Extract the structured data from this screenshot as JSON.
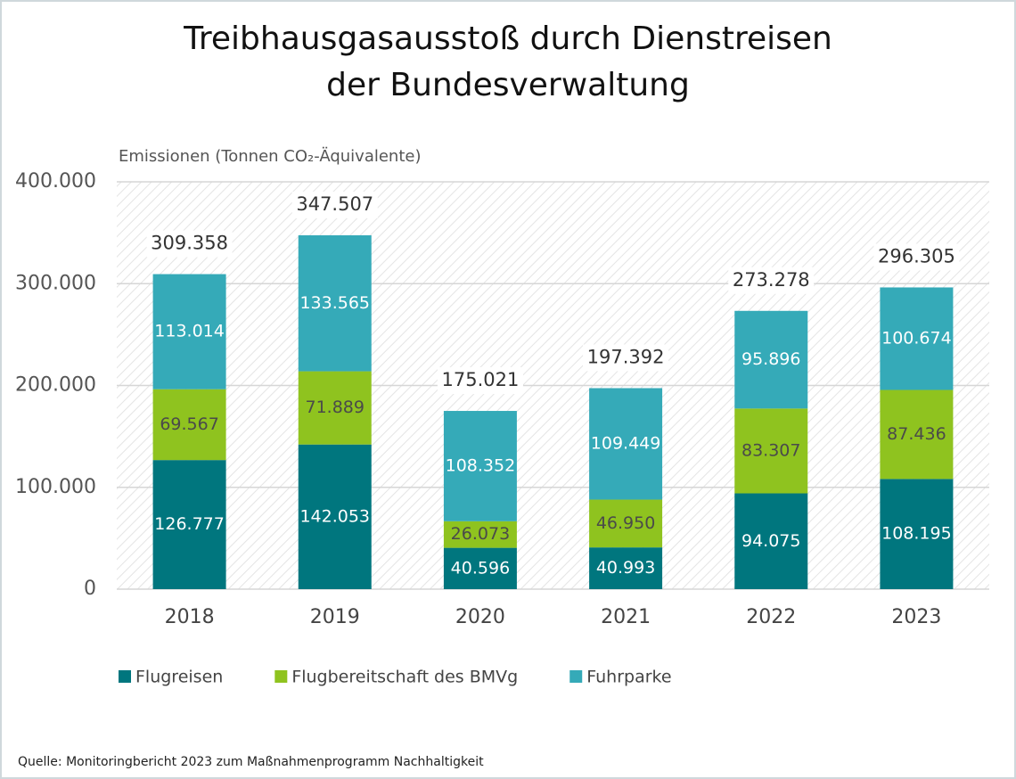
{
  "chart_data": {
    "type": "stacked_bar",
    "title": [
      "Treibhausgasausstoß durch Dienstreisen",
      "der Bundesverwaltung"
    ],
    "y_label": "Emissionen (Tonnen CO₂-Äquivalente)",
    "source": "Quelle: Monitoringbericht 2023 zum Maßnahmenprogramm Nachhaltigkeit",
    "categories": [
      "2018",
      "2019",
      "2020",
      "2021",
      "2022",
      "2023"
    ],
    "series": [
      {
        "name": "Flugreisen",
        "color": "#00767e",
        "label_color": "#ffffff",
        "values": [
          126777,
          142053,
          40596,
          40993,
          94075,
          108195
        ],
        "value_labels": [
          "126.777",
          "142.053",
          "40.596",
          "40.993",
          "94.075",
          "108.195"
        ]
      },
      {
        "name": "Flugbereitschaft des BMVg",
        "color": "#8fc31f",
        "label_color": "#4a4a4a",
        "values": [
          69567,
          71889,
          26073,
          46950,
          83307,
          87436
        ],
        "value_labels": [
          "69.567",
          "71.889",
          "26.073",
          "46.950",
          "83.307",
          "87.436"
        ]
      },
      {
        "name": "Fuhrparke",
        "color": "#35aab8",
        "label_color": "#ffffff",
        "values": [
          113014,
          133565,
          108352,
          109449,
          95896,
          100674
        ],
        "value_labels": [
          "113.014",
          "133.565",
          "108.352",
          "109.449",
          "95.896",
          "100.674"
        ]
      }
    ],
    "totals": {
      "values": [
        309358,
        347507,
        175021,
        197392,
        273278,
        296305
      ],
      "value_labels": [
        "309.358",
        "347.507",
        "175.021",
        "197.392",
        "273.278",
        "296.305"
      ]
    },
    "ylim": [
      0,
      400000
    ],
    "yticks": [
      0,
      {
        "value": 100000,
        "label": "100.000"
      },
      {
        "value": 200000,
        "label": "200.000"
      },
      {
        "value": 300000,
        "label": "300.000"
      },
      {
        "value": 400000,
        "label": "400.000"
      }
    ],
    "grid": true
  }
}
